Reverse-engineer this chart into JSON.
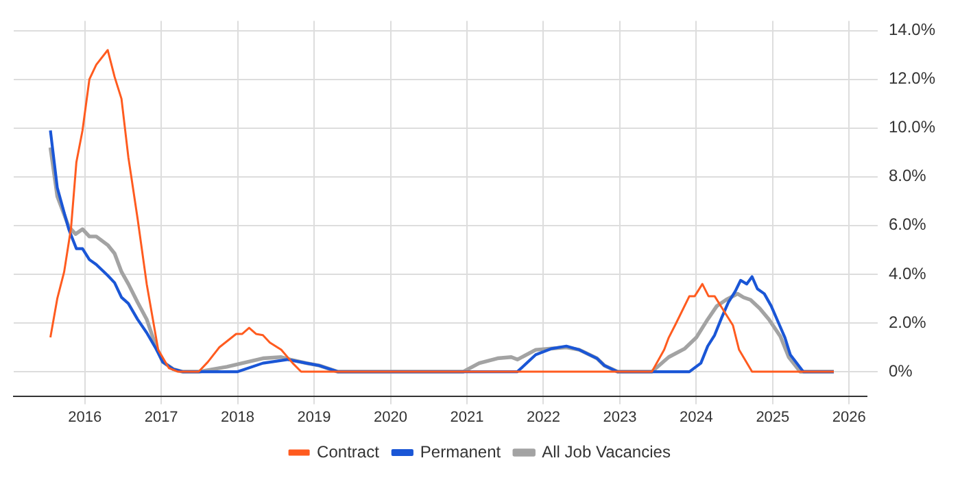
{
  "chart_data": {
    "type": "line",
    "legend": "bottom",
    "grid": true,
    "marker": "none",
    "line_style": "solid",
    "xlim": [
      2015.07,
      2026.23
    ],
    "xticks": [
      2016,
      2017,
      2018,
      2019,
      2020,
      2021,
      2022,
      2023,
      2024,
      2025,
      2026
    ],
    "ylim": [
      -1,
      14.4
    ],
    "yticks": [
      {
        "value": 0,
        "label": "0%"
      },
      {
        "value": 2,
        "label": "2.0%"
      },
      {
        "value": 4,
        "label": "4.0%"
      },
      {
        "value": 6,
        "label": "6.0%"
      },
      {
        "value": 8,
        "label": "8.0%"
      },
      {
        "value": 10,
        "label": "10.0%"
      },
      {
        "value": 12,
        "label": "12.0%"
      },
      {
        "value": 14,
        "label": "14.0%"
      }
    ],
    "series": [
      {
        "name": "Contract",
        "color": "#ff5b1f",
        "x": [
          2015.55,
          2015.64,
          2015.73,
          2015.82,
          2015.89,
          2015.97,
          2016.06,
          2016.15,
          2016.3,
          2016.39,
          2016.48,
          2016.57,
          2016.69,
          2016.81,
          2016.96,
          2017.1,
          2017.22,
          2017.49,
          2017.61,
          2017.76,
          2017.98,
          2018.06,
          2018.15,
          2018.24,
          2018.33,
          2018.42,
          2018.57,
          2018.72,
          2018.83,
          2023.42,
          2023.58,
          2023.64,
          2023.73,
          2023.91,
          2023.98,
          2024.08,
          2024.16,
          2024.24,
          2024.36,
          2024.48,
          2024.56,
          2024.73,
          2025.8
        ],
        "values": [
          1.41,
          3.0,
          4.1,
          5.9,
          8.6,
          9.9,
          12.0,
          12.6,
          13.2,
          12.1,
          11.2,
          8.8,
          6.3,
          3.6,
          0.9,
          0.15,
          0,
          0,
          0.4,
          1.0,
          1.55,
          1.55,
          1.8,
          1.55,
          1.5,
          1.2,
          0.9,
          0.35,
          0,
          0,
          0.9,
          1.4,
          1.95,
          3.1,
          3.1,
          3.6,
          3.1,
          3.1,
          2.5,
          1.9,
          0.9,
          0,
          0
        ]
      },
      {
        "name": "Permanent",
        "color": "#1a56d6",
        "x": [
          2015.55,
          2015.64,
          2015.79,
          2015.89,
          2015.97,
          2016.06,
          2016.15,
          2016.3,
          2016.39,
          2016.48,
          2016.57,
          2016.69,
          2016.81,
          2016.93,
          2017.02,
          2017.16,
          2017.28,
          2018.0,
          2018.33,
          2018.65,
          2018.9,
          2019.07,
          2019.31,
          2021.66,
          2021.9,
          2022.11,
          2022.3,
          2022.47,
          2022.7,
          2022.8,
          2022.97,
          2023.91,
          2024.06,
          2024.15,
          2024.24,
          2024.33,
          2024.42,
          2024.51,
          2024.58,
          2024.66,
          2024.73,
          2024.8,
          2024.89,
          2024.98,
          2025.07,
          2025.16,
          2025.23,
          2025.4,
          2025.8
        ],
        "values": [
          9.9,
          7.55,
          5.85,
          5.05,
          5.05,
          4.6,
          4.4,
          3.95,
          3.65,
          3.05,
          2.8,
          2.15,
          1.6,
          0.95,
          0.4,
          0.1,
          0,
          0,
          0.35,
          0.5,
          0.35,
          0.25,
          0,
          0,
          0.7,
          0.95,
          1.05,
          0.9,
          0.55,
          0.25,
          0,
          0,
          0.35,
          1.05,
          1.5,
          2.2,
          2.85,
          3.3,
          3.75,
          3.6,
          3.9,
          3.4,
          3.2,
          2.7,
          2.05,
          1.4,
          0.7,
          0,
          0
        ]
      },
      {
        "name": "All Job Vacancies",
        "color": "#a3a3a3",
        "x": [
          2015.55,
          2015.64,
          2015.79,
          2015.88,
          2015.97,
          2016.06,
          2016.15,
          2016.3,
          2016.39,
          2016.48,
          2016.57,
          2016.69,
          2016.81,
          2016.93,
          2017.02,
          2017.16,
          2017.28,
          2017.49,
          2017.86,
          2018.06,
          2018.33,
          2018.57,
          2018.69,
          2018.9,
          2019.07,
          2019.31,
          2020.95,
          2021.16,
          2021.4,
          2021.58,
          2021.66,
          2021.9,
          2022.11,
          2022.3,
          2022.47,
          2022.7,
          2022.8,
          2022.97,
          2023.42,
          2023.64,
          2023.85,
          2024.0,
          2024.15,
          2024.27,
          2024.39,
          2024.54,
          2024.62,
          2024.71,
          2024.83,
          2024.95,
          2025.1,
          2025.21,
          2025.36,
          2025.8
        ],
        "values": [
          9.2,
          7.2,
          5.95,
          5.65,
          5.85,
          5.55,
          5.55,
          5.2,
          4.85,
          4.1,
          3.6,
          2.85,
          2.15,
          1.05,
          0.4,
          0.1,
          0,
          0,
          0.2,
          0.35,
          0.55,
          0.6,
          0.5,
          0.35,
          0.25,
          0,
          0,
          0.35,
          0.55,
          0.6,
          0.5,
          0.9,
          0.95,
          1.0,
          0.9,
          0.55,
          0.25,
          0,
          0,
          0.6,
          0.95,
          1.4,
          2.15,
          2.7,
          2.95,
          3.2,
          3.05,
          2.95,
          2.6,
          2.15,
          1.45,
          0.6,
          0,
          0
        ]
      }
    ]
  }
}
